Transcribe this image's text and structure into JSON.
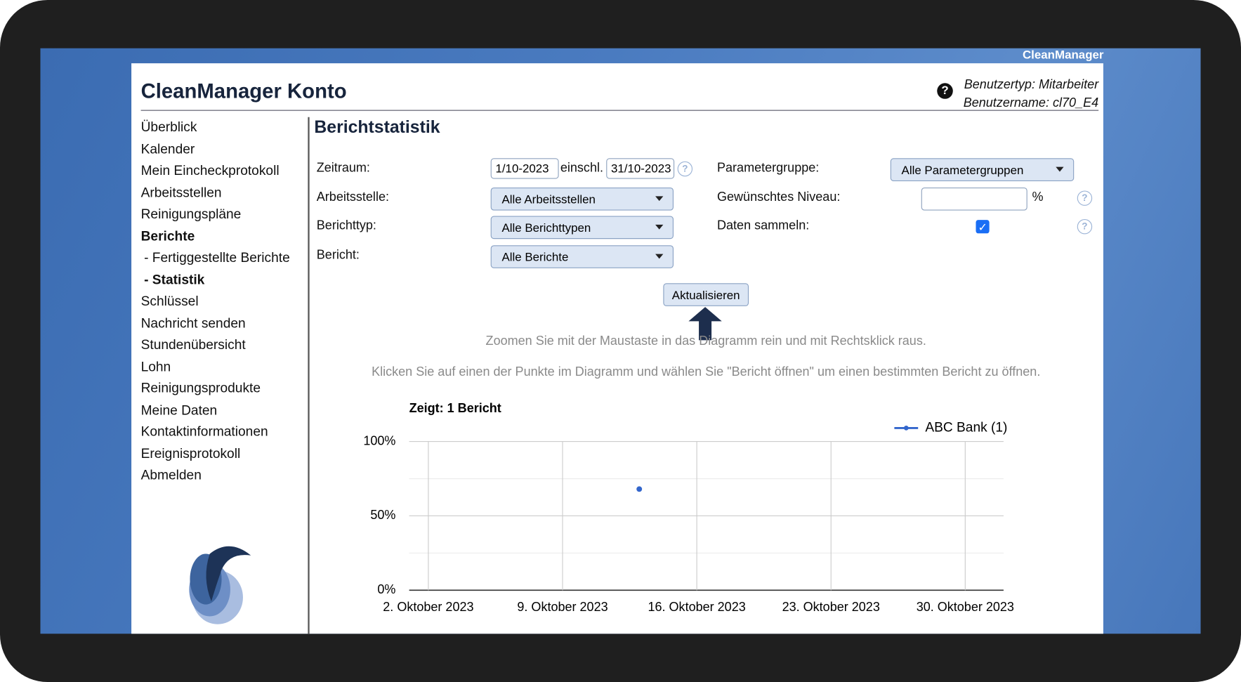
{
  "header": {
    "brand": "CleanManager",
    "title": "CleanManager Konto",
    "user_type": "Benutzertyp: Mitarbeiter",
    "username": "Benutzername: cl70_E4"
  },
  "nav": {
    "items": [
      {
        "label": "Überblick"
      },
      {
        "label": "Kalender"
      },
      {
        "label": "Mein Eincheckprotokoll"
      },
      {
        "label": "Arbeitsstellen"
      },
      {
        "label": "Reinigungspläne"
      },
      {
        "label": "Berichte",
        "current": true
      },
      {
        "label": "- Fertiggestellte Berichte"
      },
      {
        "label": "- Statistik",
        "current": true
      },
      {
        "label": "Schlüssel"
      },
      {
        "label": "Nachricht senden"
      },
      {
        "label": "Stundenübersicht"
      },
      {
        "label": "Lohn"
      },
      {
        "label": "Reinigungsprodukte"
      },
      {
        "label": "Meine Daten"
      },
      {
        "label": "Kontaktinformationen"
      },
      {
        "label": "Ereignisprotokoll"
      },
      {
        "label": "Abmelden"
      }
    ]
  },
  "page": {
    "heading": "Berichtstatistik"
  },
  "form": {
    "fields": [
      {
        "label": "Zeitraum:",
        "from": "1/10-2023",
        "between": "einschl.",
        "to": "31/10-2023"
      },
      {
        "label": "Arbeitsstelle:",
        "value": "Alle Arbeitsstellen"
      },
      {
        "label": "Berichttyp:",
        "value": "Alle Berichttypen"
      },
      {
        "label": "Bericht:",
        "value": "Alle Berichte"
      },
      {
        "label": "Parametergruppe:",
        "value": "Alle Parametergruppen"
      },
      {
        "label": "Gewünschtes Niveau:",
        "unit": "%"
      },
      {
        "label": "Daten sammeln:",
        "checked": true
      }
    ],
    "button": "Aktualisieren"
  },
  "hints": [
    "Zoomen Sie mit der Maustaste in das Diagramm rein und mit Rechtsklick raus.",
    "Klicken Sie auf einen der Punkte im Diagramm und wählen Sie \"Bericht öffnen\" um einen bestimmten Bericht zu öffnen."
  ],
  "chart": {
    "type": "scatter",
    "title": "Zeigt: 1 Bericht",
    "series": [
      {
        "name": "ABC Bank (1)",
        "color": "#3366cc",
        "x": [
          "2023-10-13"
        ],
        "values": [
          68
        ]
      }
    ],
    "xlim": [
      "2023-10-01",
      "2023-11-01"
    ],
    "xticks": [
      {
        "value": "2023-10-02",
        "label": "2. Oktober 2023"
      },
      {
        "value": "2023-10-09",
        "label": "9. Oktober 2023"
      },
      {
        "value": "2023-10-16",
        "label": "16. Oktober 2023"
      },
      {
        "value": "2023-10-23",
        "label": "23. Oktober 2023"
      },
      {
        "value": "2023-10-30",
        "label": "30. Oktober 2023"
      }
    ],
    "ylim": [
      0,
      100
    ],
    "yticks": [
      {
        "value": 0,
        "label": "0%"
      },
      {
        "value": 50,
        "label": "50%"
      },
      {
        "value": 100,
        "label": "100%"
      }
    ],
    "minor_yticks": [
      25,
      75
    ],
    "grid": true,
    "legend": "top-right"
  }
}
